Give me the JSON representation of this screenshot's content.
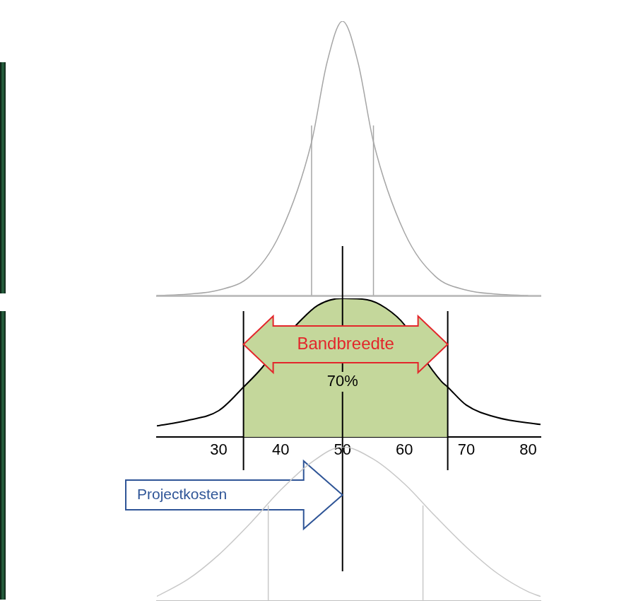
{
  "chart_data": [
    {
      "type": "line",
      "x": [
        20,
        25,
        30,
        35,
        40,
        45,
        47.5,
        50,
        52.5,
        55,
        60,
        65,
        70,
        75,
        80
      ],
      "values": [
        0,
        0.5,
        2,
        7,
        23,
        56,
        85,
        100,
        85,
        56,
        23,
        7,
        2,
        0.5,
        0
      ],
      "xlim": [
        20,
        82
      ],
      "ylim": [
        0,
        100
      ],
      "color": "#a6a6a6",
      "tick_labels": false,
      "reference_lines": [
        45,
        55
      ]
    },
    {
      "type": "line",
      "x": [
        20,
        25,
        30,
        34,
        37,
        40,
        43,
        46,
        50,
        54,
        57,
        60,
        63,
        66,
        67,
        70,
        75,
        82
      ],
      "values": [
        8,
        12,
        19,
        36,
        50,
        68,
        83,
        95,
        100,
        99,
        93,
        81,
        58,
        40,
        36,
        23,
        14,
        9
      ],
      "xlim": [
        20,
        82
      ],
      "ylim": [
        0,
        100
      ],
      "xticks": [
        30,
        40,
        50,
        60,
        70,
        80
      ],
      "tick_labels": "x",
      "grid": false,
      "color": "#000000",
      "band": {
        "from": 34,
        "to": 67,
        "color": "#c4d79b"
      },
      "band_arrow": {
        "label": "Bandbreedte",
        "color": "#e3262b"
      },
      "band_share": {
        "value": 70,
        "label": "70%"
      },
      "cost_line": {
        "value": 50,
        "label": "Projectkosten",
        "color": "#2f5597"
      }
    },
    {
      "type": "line",
      "x": [
        20,
        25,
        30,
        35,
        40,
        45,
        50,
        55,
        60,
        65,
        70,
        75,
        80,
        82
      ],
      "values": [
        3,
        14,
        30,
        50,
        72,
        90,
        100,
        92,
        76,
        55,
        35,
        18,
        6,
        3
      ],
      "xlim": [
        20,
        82
      ],
      "ylim": [
        0,
        100
      ],
      "color": "#c8c8c8",
      "tick_labels": false,
      "reference_lines": [
        38,
        63
      ]
    }
  ]
}
